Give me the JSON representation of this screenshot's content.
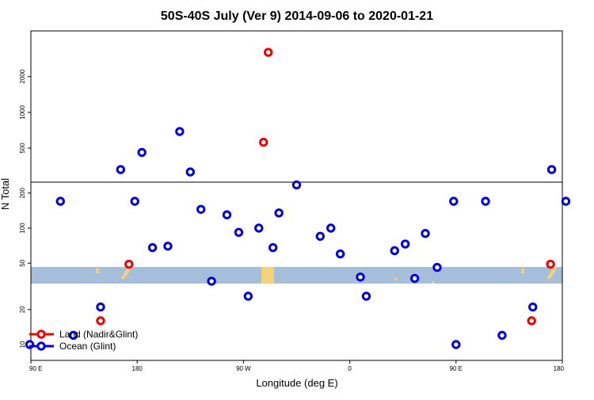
{
  "chart_data": {
    "type": "scatter",
    "title": "50S-40S July (Ver 9)   2014-09-06 to 2020-01-21",
    "xlabel": "Longitude (deg E)",
    "ylabel": "N Total",
    "y_scale": "log",
    "x_ticks": [
      {
        "value": 90,
        "label": "90 E"
      },
      {
        "value": 180,
        "label": "180"
      },
      {
        "value": 270,
        "label": "90 W"
      },
      {
        "value": 360,
        "label": "0"
      },
      {
        "value": 450,
        "label": "90 E"
      },
      {
        "value": 540,
        "label": "180"
      }
    ],
    "y_ticks": [
      10,
      20,
      50,
      100,
      200,
      500,
      1000,
      2000
    ],
    "legend": {
      "position": "bottom-left",
      "entries": [
        {
          "label": "Land (Nadir&Glint)",
          "color": "#ee0000"
        },
        {
          "label": "Ocean (Glint)",
          "color": "#0000dd"
        }
      ]
    },
    "series": [
      {
        "name": "Land (Nadir&Glint)",
        "color": "#ee0000",
        "points": [
          {
            "x": 149,
            "y": 16
          },
          {
            "x": 173,
            "y": 49
          },
          {
            "x": 287,
            "y": 560
          },
          {
            "x": 291,
            "y": 3200
          },
          {
            "x": 514,
            "y": 16
          },
          {
            "x": 530,
            "y": 49
          }
        ]
      },
      {
        "name": "Ocean (Glint)",
        "color": "#0000dd",
        "points": [
          {
            "x": 89,
            "y": 10
          },
          {
            "x": 115,
            "y": 170
          },
          {
            "x": 126,
            "y": 12
          },
          {
            "x": 149,
            "y": 21
          },
          {
            "x": 166,
            "y": 330
          },
          {
            "x": 178,
            "y": 170
          },
          {
            "x": 184,
            "y": 460
          },
          {
            "x": 193,
            "y": 68
          },
          {
            "x": 206,
            "y": 70
          },
          {
            "x": 216,
            "y": 690
          },
          {
            "x": 225,
            "y": 315
          },
          {
            "x": 234,
            "y": 145
          },
          {
            "x": 243,
            "y": 35
          },
          {
            "x": 256,
            "y": 130
          },
          {
            "x": 266,
            "y": 92
          },
          {
            "x": 274,
            "y": 26
          },
          {
            "x": 283,
            "y": 100
          },
          {
            "x": 295,
            "y": 68
          },
          {
            "x": 300,
            "y": 135
          },
          {
            "x": 315,
            "y": 245
          },
          {
            "x": 335,
            "y": 85
          },
          {
            "x": 344,
            "y": 100
          },
          {
            "x": 352,
            "y": 60
          },
          {
            "x": 369,
            "y": 38
          },
          {
            "x": 374,
            "y": 26
          },
          {
            "x": 398,
            "y": 64
          },
          {
            "x": 407,
            "y": 73
          },
          {
            "x": 415,
            "y": 37
          },
          {
            "x": 424,
            "y": 90
          },
          {
            "x": 434,
            "y": 46
          },
          {
            "x": 448,
            "y": 170
          },
          {
            "x": 450,
            "y": 10
          },
          {
            "x": 475,
            "y": 170
          },
          {
            "x": 489,
            "y": 12
          },
          {
            "x": 515,
            "y": 21
          },
          {
            "x": 531,
            "y": 330
          },
          {
            "x": 543,
            "y": 170
          }
        ]
      }
    ]
  }
}
